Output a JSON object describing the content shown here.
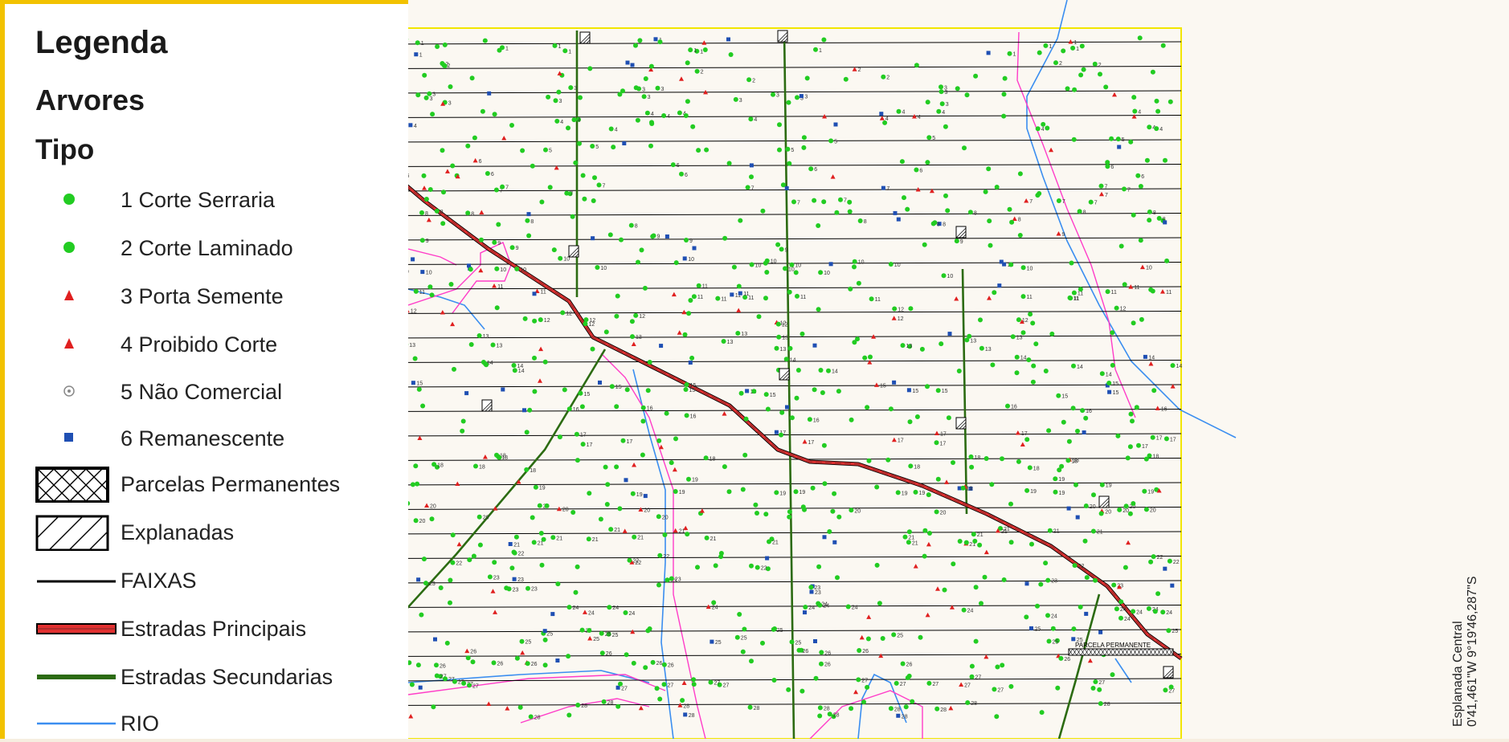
{
  "legend": {
    "title": "Legenda",
    "subtitle": "Arvores",
    "type_heading": "Tipo",
    "items": [
      {
        "label": "1 Corte Serraria",
        "symbol": "green-dot",
        "color": "#22cc22"
      },
      {
        "label": "2 Corte Laminado",
        "symbol": "green-dot",
        "color": "#22cc22"
      },
      {
        "label": "3 Porta Semente",
        "symbol": "red-triangle",
        "color": "#e02020"
      },
      {
        "label": "4 Proibido Corte",
        "symbol": "red-triangle",
        "color": "#e02020"
      },
      {
        "label": "5 Não Comercial",
        "symbol": "grey-target",
        "color": "#888888"
      },
      {
        "label": "6 Remanescente",
        "symbol": "blue-square",
        "color": "#1f4fb3"
      },
      {
        "label": "Parcelas Permanentes",
        "symbol": "crosshatch-box",
        "color": "#000000"
      },
      {
        "label": "Explanadas",
        "symbol": "hatched-box",
        "color": "#000000"
      },
      {
        "label": "FAIXAS",
        "symbol": "black-line",
        "color": "#000000"
      },
      {
        "label": "Estradas Principais",
        "symbol": "red-road",
        "color": "#e03030"
      },
      {
        "label": "Estradas Secundarias",
        "symbol": "green-road",
        "color": "#2c6b12"
      },
      {
        "label": "RIO",
        "symbol": "blue-line",
        "color": "#3b8ef0"
      }
    ]
  },
  "map": {
    "row_labels": [
      "1",
      "2",
      "3",
      "4",
      "5",
      "6",
      "7",
      "8",
      "9",
      "10",
      "11",
      "12",
      "13",
      "14",
      "15",
      "16",
      "17",
      "18",
      "19",
      "20",
      "21",
      "22",
      "23",
      "24",
      "25",
      "26",
      "27",
      "28"
    ],
    "colors": {
      "faixas": "#000000",
      "main_road": "#e03030",
      "main_road_edge": "#7a2a2a",
      "secondary_road": "#2c6b12",
      "river": "#3b8ef0",
      "boundary": "#ff3cc8",
      "frame": "#f2e600",
      "tree_dot": "#22cc22",
      "tree_triangle": "#e02020",
      "tree_square": "#1f4fb3"
    },
    "parcel_label": "PARCELA PERMANENTE",
    "coordinate_label_line1": "Esplanada Central",
    "coordinate_label_line2": "0'41,461\"W 9°19'46,287\"S"
  }
}
